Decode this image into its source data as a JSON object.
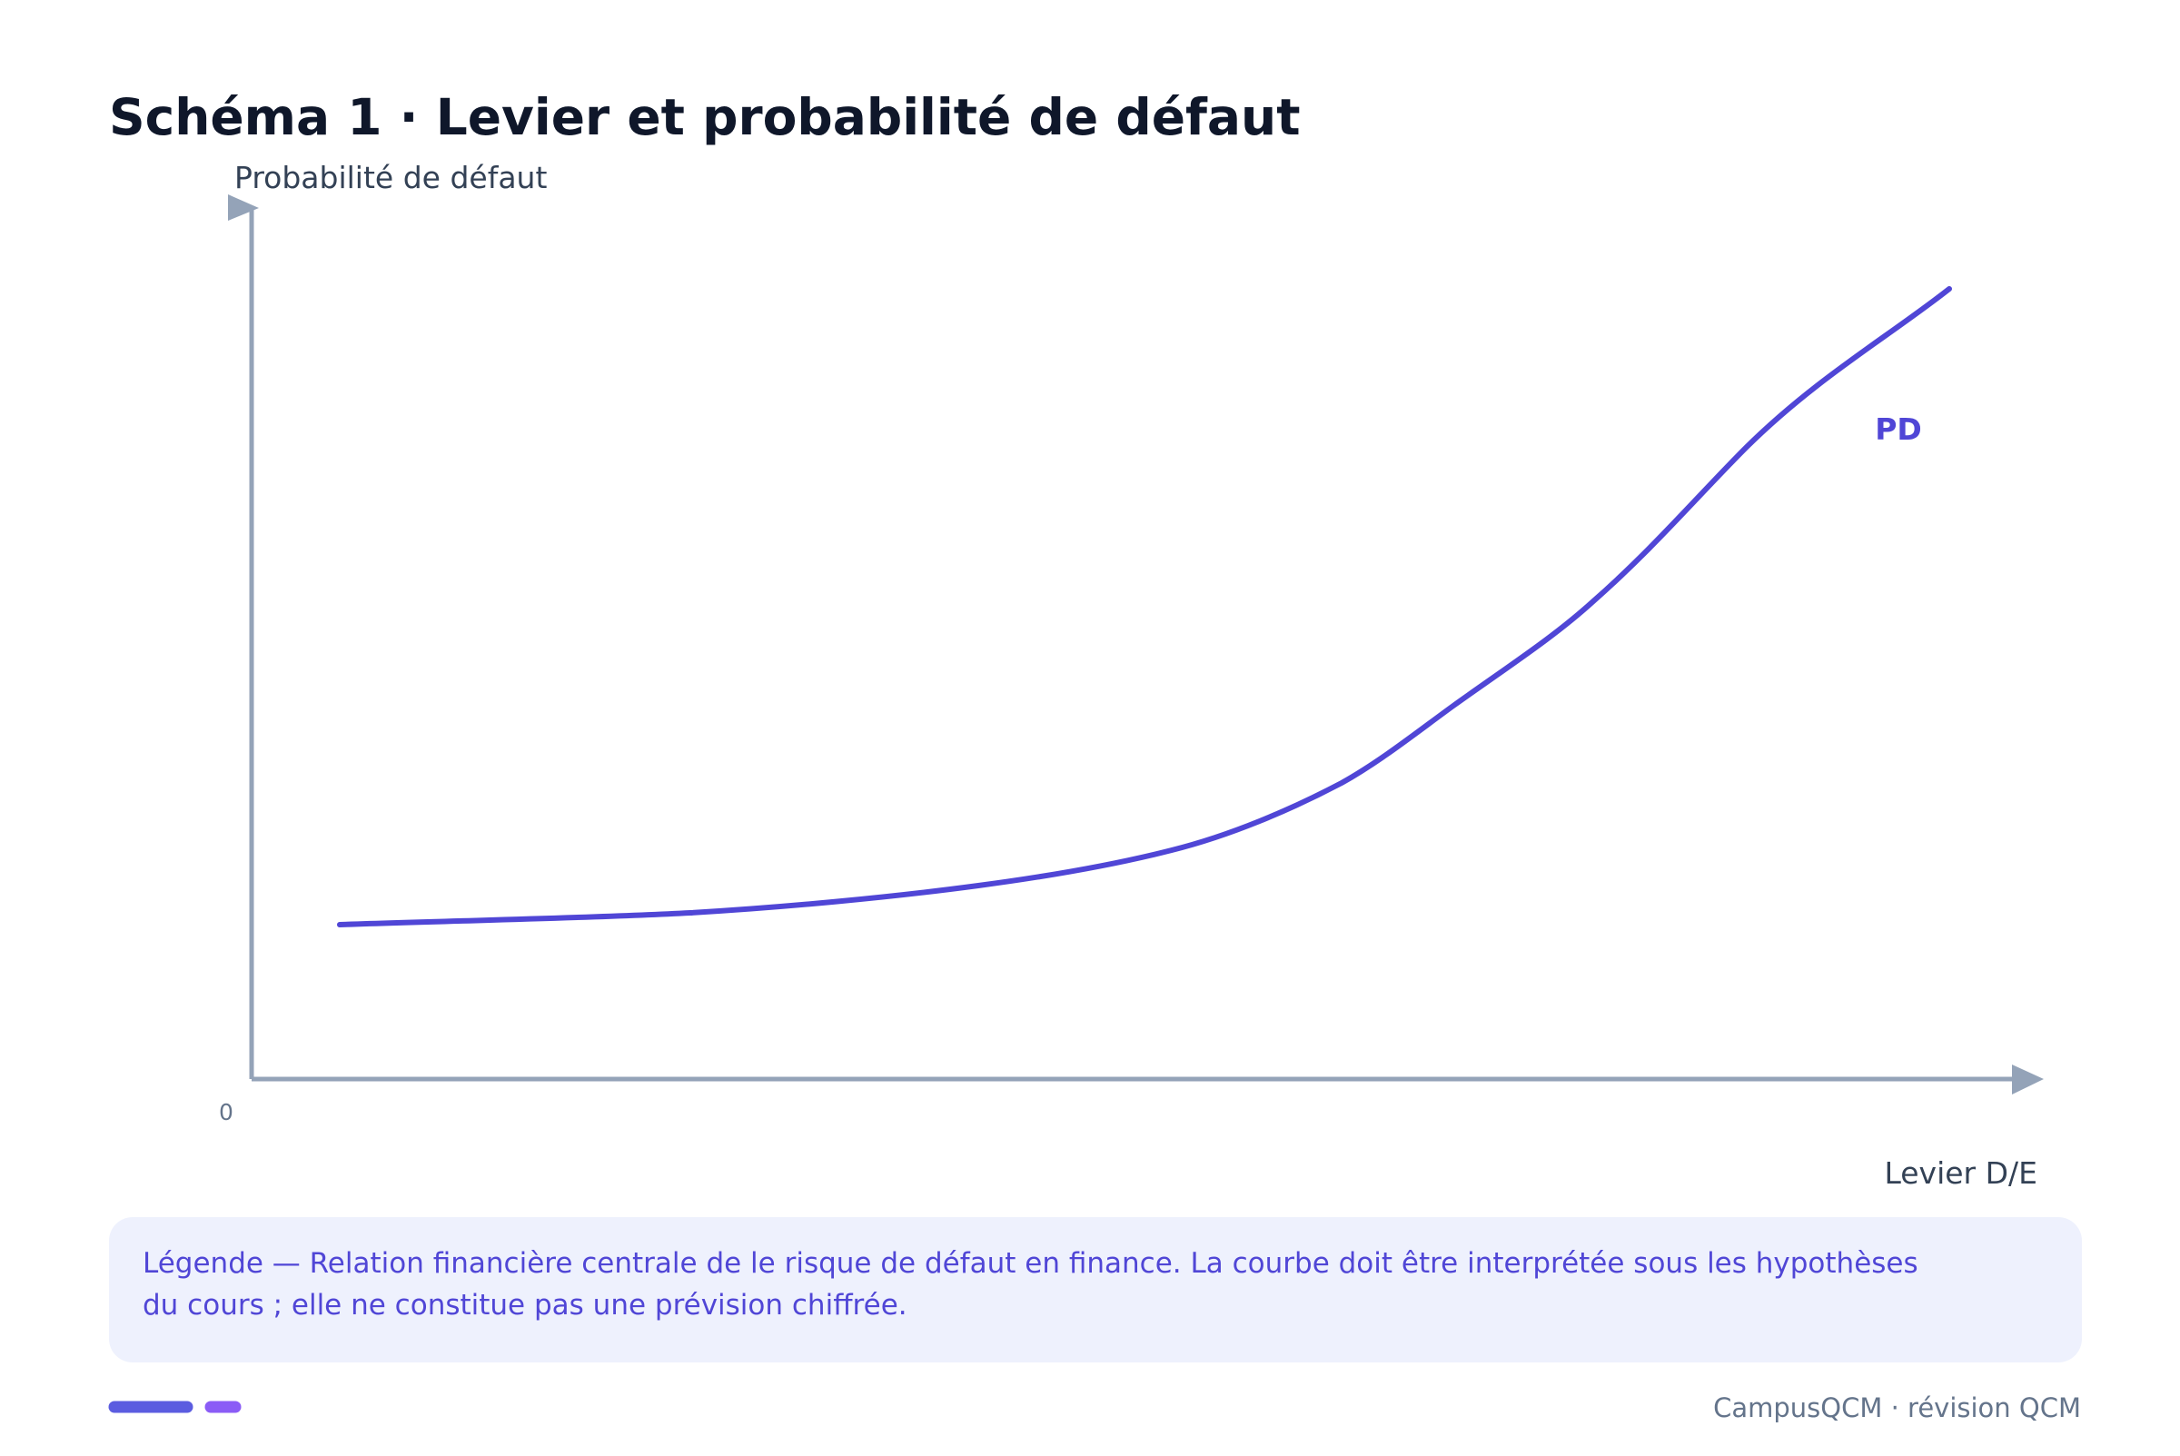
{
  "title": "Schéma 1 · Levier et probabilité de défaut",
  "y_axis_label": "Probabilité de défaut",
  "x_axis_label": "Levier D/E",
  "origin_label": "0",
  "curve_label": "PD",
  "legend": "Légende — Relation financière centrale de le risque de défaut en finance. La courbe doit être interprétée sous les hypothèses du cours ; elle ne constitue pas une prévision chiffrée.",
  "footer": "CampusQCM · révision QCM"
}
